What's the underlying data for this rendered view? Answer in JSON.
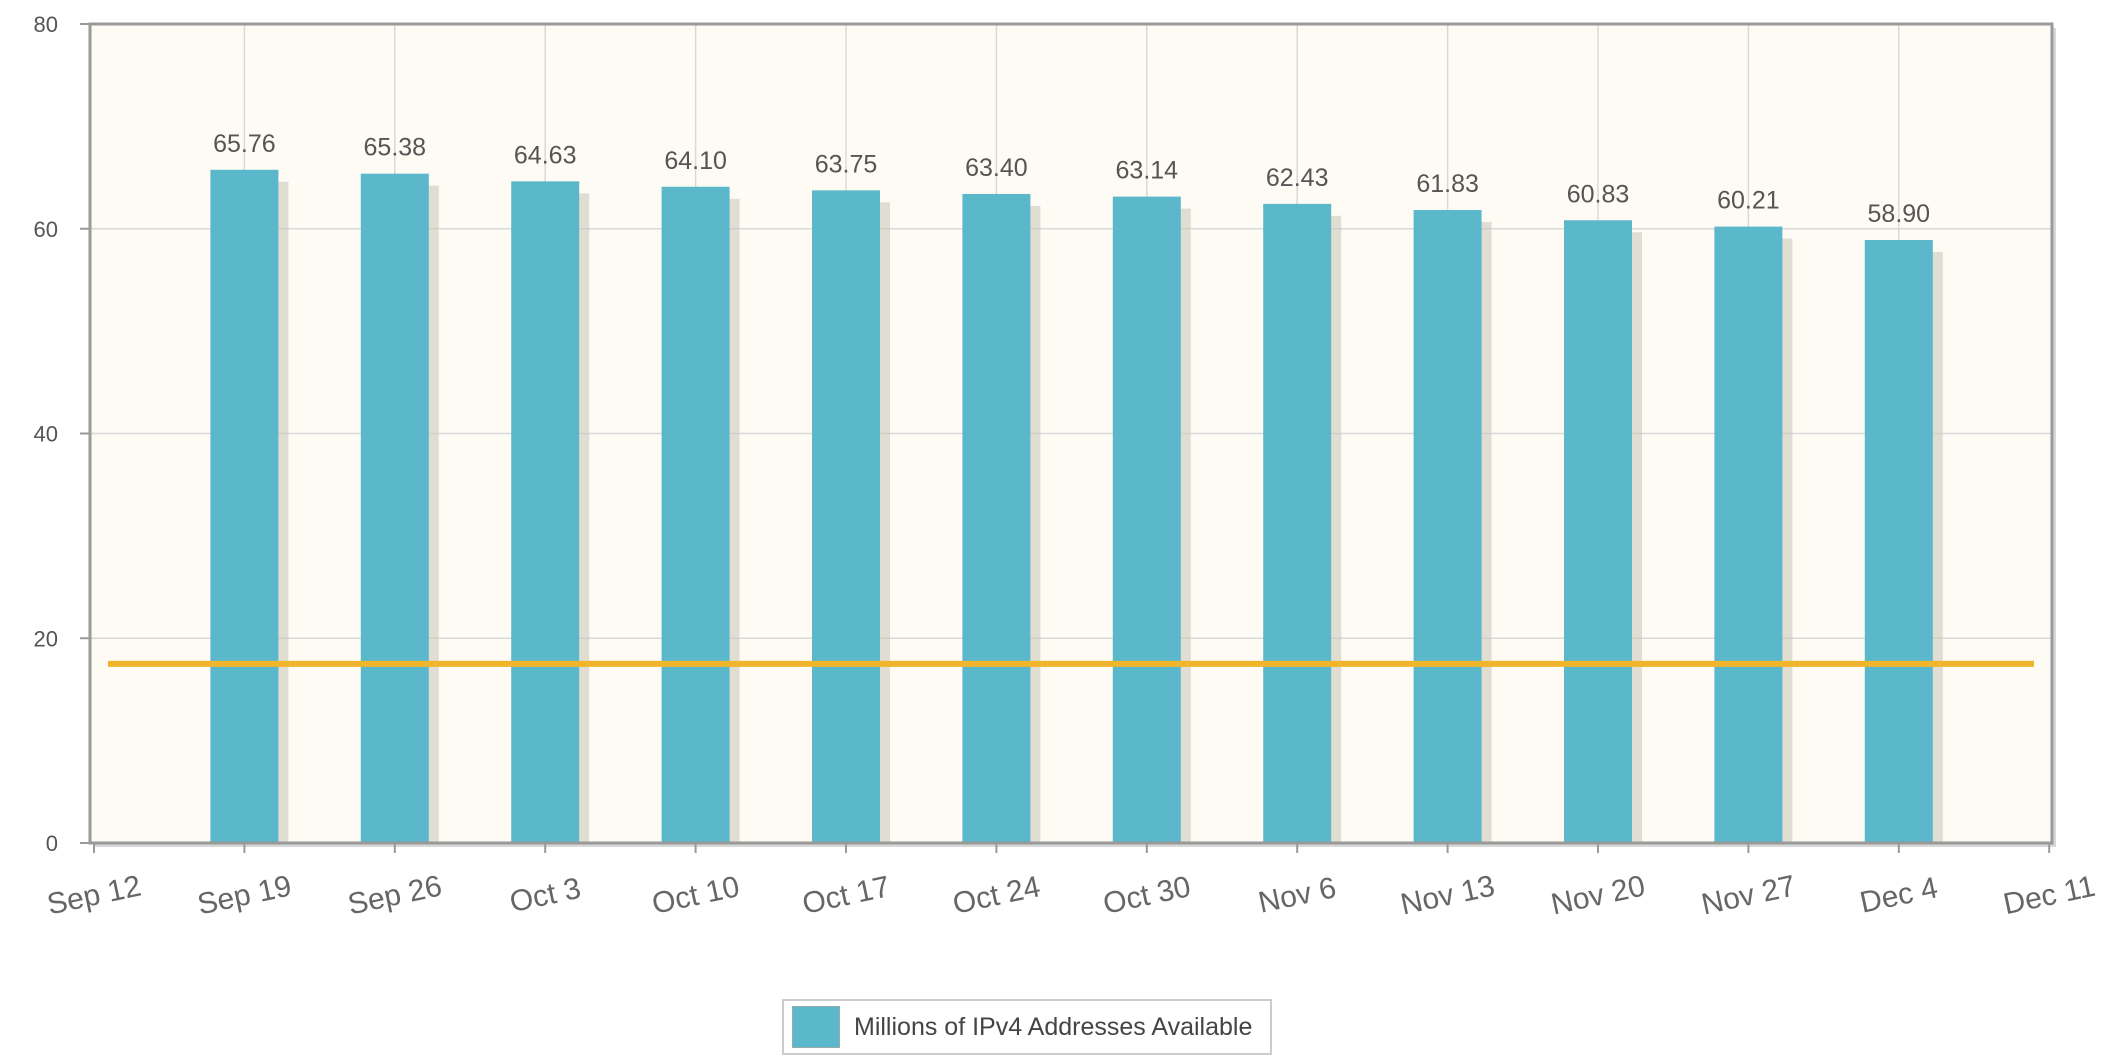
{
  "chart_data": {
    "type": "bar",
    "title": "",
    "xlabel": "",
    "ylabel": "",
    "ylim": [
      0,
      80
    ],
    "yticks": [
      0,
      20,
      40,
      60,
      80
    ],
    "x_axis_labels": [
      "Sep 12",
      "Sep 19",
      "Sep 26",
      "Oct 3",
      "Oct 10",
      "Oct 17",
      "Oct 24",
      "Oct 30",
      "Nov 6",
      "Nov 13",
      "Nov 20",
      "Nov 27",
      "Dec 4",
      "Dec 11"
    ],
    "categories": [
      "Sep 19",
      "Sep 26",
      "Oct 3",
      "Oct 10",
      "Oct 17",
      "Oct 24",
      "Oct 30",
      "Nov 6",
      "Nov 13",
      "Nov 20",
      "Nov 27",
      "Dec 4"
    ],
    "value_labels": [
      "65.76",
      "65.38",
      "64.63",
      "64.10",
      "63.75",
      "63.40",
      "63.14",
      "62.43",
      "61.83",
      "60.83",
      "60.21",
      "58.90"
    ],
    "series": [
      {
        "name": "Millions of IPv4 Addresses Available",
        "color": "#5bb8cb",
        "values": [
          65.76,
          65.38,
          64.63,
          64.1,
          63.75,
          63.4,
          63.14,
          62.43,
          61.83,
          60.83,
          60.21,
          58.9
        ]
      }
    ],
    "reference_line": {
      "y": 17.5,
      "color": "#f1b52b"
    },
    "grid": true,
    "plot_background": "#fdfbf4",
    "legend_position": "bottom-center"
  },
  "legend": {
    "label": "Millions of IPv4 Addresses Available",
    "color": "#5bb8cb"
  }
}
